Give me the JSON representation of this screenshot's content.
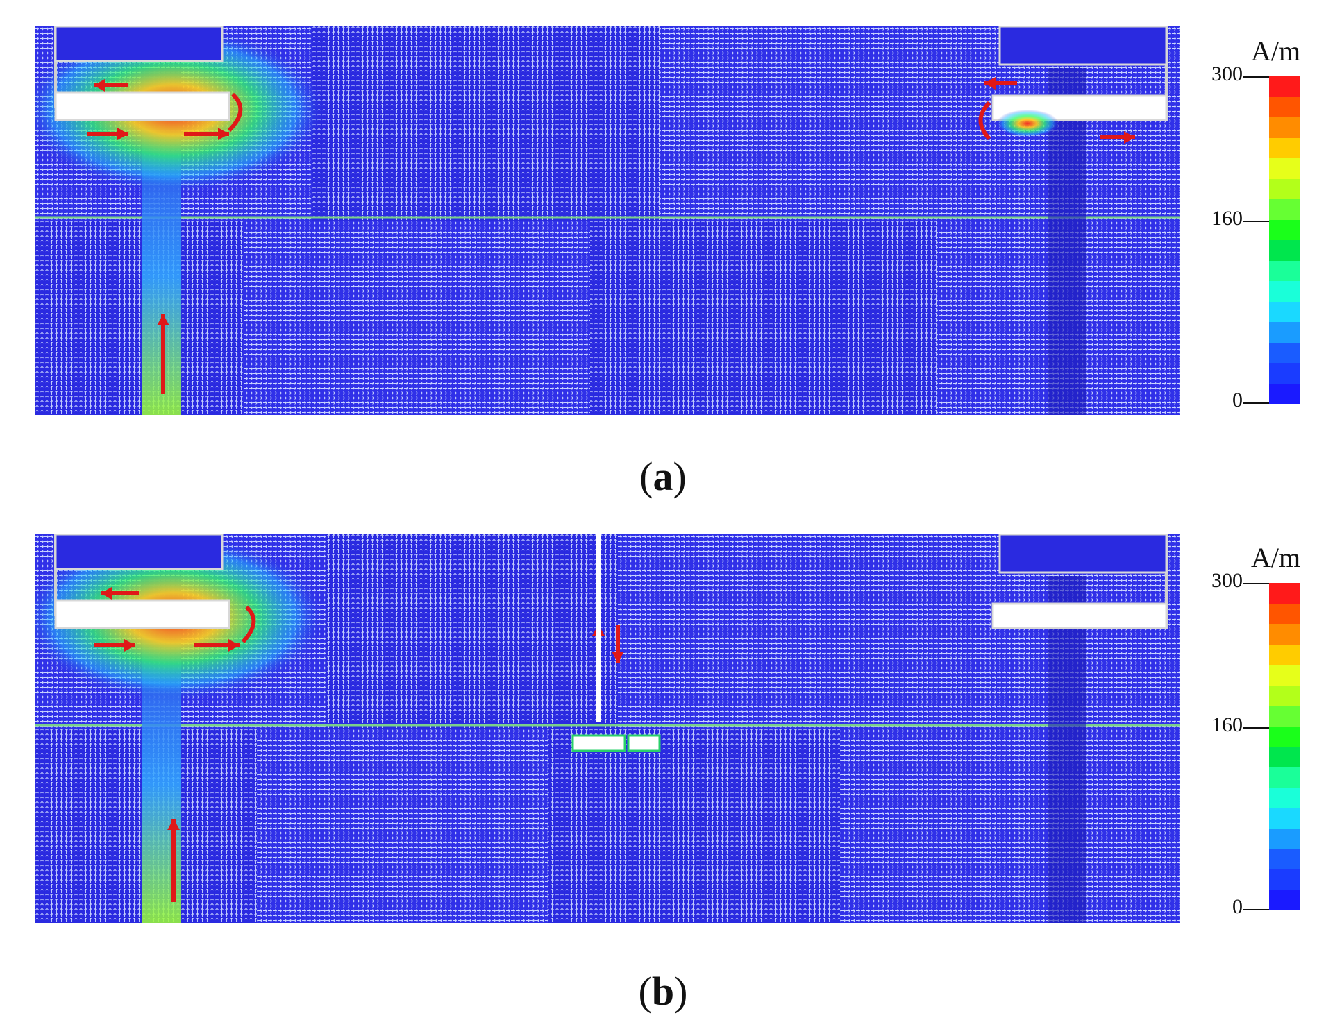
{
  "figure": {
    "panels": [
      {
        "id": "a",
        "caption": "a"
      },
      {
        "id": "b",
        "caption": "b"
      }
    ]
  },
  "colorbar": {
    "unit": "A/m",
    "ticks": [
      "300",
      "160",
      "0"
    ],
    "colors": [
      "#ff1a1a",
      "#ff5500",
      "#ff8c00",
      "#ffcc00",
      "#e6ff1a",
      "#b3ff1a",
      "#66ff33",
      "#1aff1a",
      "#00e64d",
      "#1aff99",
      "#1affd9",
      "#1ad9ff",
      "#1a9cff",
      "#1a5cff",
      "#1a3cff",
      "#1a1aff"
    ]
  },
  "colors": {
    "field_low": "#1f1fe0",
    "field_mid": "#23b5ff",
    "field_high": "#ff2a1a",
    "background": "#ffffff",
    "arrow": "#e01818",
    "interface_line": "#7ad08a"
  }
}
